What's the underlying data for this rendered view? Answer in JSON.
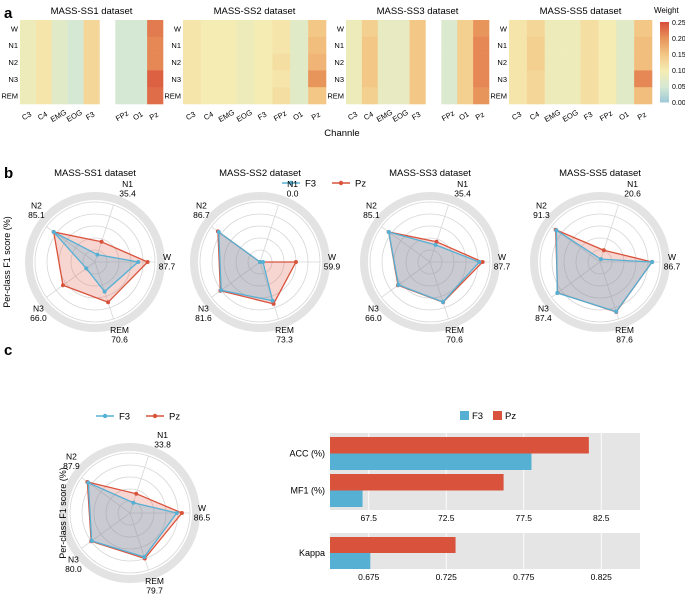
{
  "panel_labels": {
    "a": "a",
    "b": "b",
    "c": "c"
  },
  "colors": {
    "f3": "#56b0d4",
    "pz": "#d9533c",
    "f3_fill": "#56b0d4",
    "pz_fill": "#e2695a",
    "radar_ring": "#e3e3e3",
    "panel_bg": "#e5e5e5"
  },
  "chart_data": [
    {
      "id": "heatmaps",
      "type": "heatmap",
      "xlabel": "Channle",
      "stages": [
        "W",
        "N1",
        "N2",
        "N3",
        "REM"
      ],
      "colorbar": {
        "title": "Weight",
        "min": 0.0,
        "max": 0.25,
        "ticks": [
          "0.00",
          "0.05",
          "0.10",
          "0.15",
          "0.20",
          "0.25"
        ]
      },
      "panels": [
        {
          "title": "MASS-SS1 dataset",
          "channels": [
            "C3",
            "C4",
            "EMG",
            "EOG",
            "F3",
            "",
            "FPz",
            "O1",
            "Pz"
          ],
          "values": [
            [
              0.09,
              0.11,
              0.07,
              0.05,
              0.13,
              null,
              0.05,
              0.05,
              0.22
            ],
            [
              0.09,
              0.11,
              0.07,
              0.05,
              0.13,
              null,
              0.05,
              0.05,
              0.21
            ],
            [
              0.09,
              0.11,
              0.07,
              0.05,
              0.13,
              null,
              0.05,
              0.05,
              0.21
            ],
            [
              0.09,
              0.11,
              0.07,
              0.05,
              0.13,
              null,
              0.05,
              0.05,
              0.24
            ],
            [
              0.09,
              0.11,
              0.07,
              0.05,
              0.13,
              null,
              0.05,
              0.05,
              0.23
            ]
          ]
        },
        {
          "title": "MASS-SS2 dataset",
          "channels": [
            "C3",
            "C4",
            "EMG",
            "EOG",
            "F3",
            "FPz",
            "O1",
            "Pz"
          ],
          "values": [
            [
              0.11,
              0.1,
              0.1,
              0.09,
              0.1,
              0.11,
              0.07,
              0.15
            ],
            [
              0.11,
              0.1,
              0.1,
              0.09,
              0.1,
              0.11,
              0.07,
              0.16
            ],
            [
              0.11,
              0.1,
              0.1,
              0.09,
              0.1,
              0.12,
              0.07,
              0.17
            ],
            [
              0.11,
              0.1,
              0.1,
              0.09,
              0.1,
              0.11,
              0.07,
              0.2
            ],
            [
              0.11,
              0.1,
              0.1,
              0.09,
              0.1,
              0.12,
              0.07,
              0.15
            ]
          ]
        },
        {
          "title": "MASS-SS3 dataset",
          "channels": [
            "C3",
            "C4",
            "EMG",
            "EOG",
            "F3",
            "",
            "FPz",
            "O1",
            "Pz"
          ],
          "values": [
            [
              0.09,
              0.14,
              0.08,
              0.08,
              0.15,
              null,
              0.06,
              0.14,
              0.2
            ],
            [
              0.09,
              0.15,
              0.08,
              0.08,
              0.15,
              null,
              0.06,
              0.14,
              0.21
            ],
            [
              0.09,
              0.15,
              0.08,
              0.08,
              0.15,
              null,
              0.06,
              0.14,
              0.21
            ],
            [
              0.09,
              0.15,
              0.08,
              0.08,
              0.15,
              null,
              0.06,
              0.14,
              0.21
            ],
            [
              0.09,
              0.14,
              0.08,
              0.08,
              0.15,
              null,
              0.06,
              0.14,
              0.2
            ]
          ]
        },
        {
          "title": "MASS-SS5 dataset",
          "channels": [
            "C3",
            "C4",
            "EMG",
            "EOG",
            "F3",
            "FPz",
            "O1",
            "Pz"
          ],
          "values": [
            [
              0.11,
              0.13,
              0.09,
              0.09,
              0.12,
              0.1,
              0.07,
              0.15
            ],
            [
              0.11,
              0.14,
              0.09,
              0.09,
              0.12,
              0.1,
              0.07,
              0.16
            ],
            [
              0.11,
              0.14,
              0.09,
              0.09,
              0.12,
              0.1,
              0.07,
              0.16
            ],
            [
              0.11,
              0.13,
              0.09,
              0.09,
              0.12,
              0.1,
              0.07,
              0.21
            ],
            [
              0.11,
              0.13,
              0.09,
              0.09,
              0.12,
              0.1,
              0.07,
              0.16
            ]
          ]
        }
      ]
    },
    {
      "id": "radars",
      "type": "radar",
      "ylabel": "Per-class F1 score (%)",
      "legend": [
        "F3",
        "Pz"
      ],
      "axes": [
        "N1",
        "W",
        "REM",
        "N3",
        "N2"
      ],
      "rmax": 100,
      "rings": 5,
      "panels": [
        {
          "title": "MASS-SS1 dataset",
          "F3": [
            13,
            72,
            52,
            18,
            85
          ],
          "Pz": [
            35.4,
            87.7,
            70.6,
            66.0,
            85.1
          ]
        },
        {
          "title": "MASS-SS2 dataset",
          "F3": [
            0,
            5,
            68,
            80,
            85
          ],
          "Pz": [
            0.0,
            59.9,
            73.3,
            81.6,
            86.7
          ]
        },
        {
          "title": "MASS-SS3 dataset",
          "F3": [
            30,
            82,
            70,
            65,
            85
          ],
          "Pz": [
            35.4,
            87.7,
            70.6,
            66.0,
            85.1
          ]
        },
        {
          "title": "MASS-SS5 dataset",
          "F3": [
            5,
            87,
            87,
            88,
            90
          ],
          "Pz": [
            20.6,
            86.7,
            87.6,
            87.4,
            91.3
          ]
        }
      ]
    },
    {
      "id": "radar_avg",
      "type": "radar",
      "ylabel": "Per-class F1 score (%)",
      "legend": [
        "F3",
        "Pz"
      ],
      "axes": [
        "N1",
        "W",
        "REM",
        "N3",
        "N2"
      ],
      "rmax": 100,
      "rings": 5,
      "panels": [
        {
          "title": "",
          "F3": [
            18,
            78,
            77,
            79,
            86
          ],
          "Pz": [
            33.8,
            86.5,
            79.7,
            80.0,
            87.9
          ]
        }
      ]
    },
    {
      "id": "bars_acc_mf1",
      "type": "bar",
      "orientation": "horizontal",
      "legend": [
        "F3",
        "Pz"
      ],
      "categories": [
        "ACC (%)",
        "MF1 (%)"
      ],
      "series": [
        {
          "name": "Pz",
          "values": [
            81.7,
            76.2
          ]
        },
        {
          "name": "F3",
          "values": [
            78.0,
            67.1
          ]
        }
      ],
      "xlim": [
        65,
        85
      ],
      "ticks": [
        67.5,
        72.5,
        77.5,
        82.5
      ],
      "tick_labels": [
        "67.5",
        "72.5",
        "77.5",
        "82.5"
      ]
    },
    {
      "id": "bars_kappa",
      "type": "bar",
      "orientation": "horizontal",
      "categories": [
        "Kappa"
      ],
      "series": [
        {
          "name": "Pz",
          "values": [
            0.731
          ]
        },
        {
          "name": "F3",
          "values": [
            0.676
          ]
        }
      ],
      "xlim": [
        0.65,
        0.85
      ],
      "ticks": [
        0.675,
        0.725,
        0.775,
        0.825
      ],
      "tick_labels": [
        "0.675",
        "0.725",
        "0.775",
        "0.825"
      ]
    }
  ]
}
